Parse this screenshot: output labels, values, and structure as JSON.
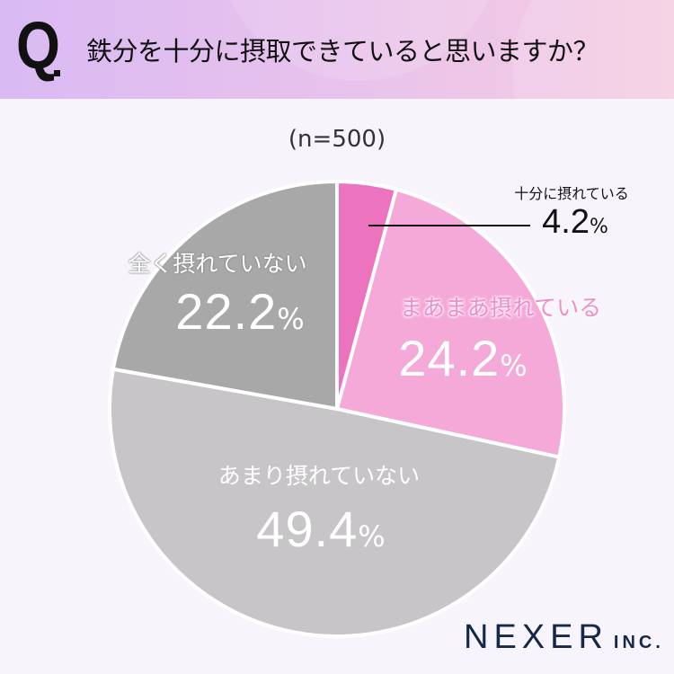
{
  "header": {
    "q_mark": "Q",
    "title": "鉄分を十分に摂取できていると思いますか？"
  },
  "sample": "(n=500)",
  "chart_data": {
    "type": "pie",
    "start": "top",
    "direction": "clockwise",
    "slices": [
      {
        "label": "十分に摂れている",
        "value": 4.2,
        "display": "4.2",
        "color": "#ec74bf"
      },
      {
        "label": "まあまあ摂れている",
        "value": 24.2,
        "display": "24.2",
        "color": "#f5a9d8"
      },
      {
        "label": "あまり摂れていない",
        "value": 49.4,
        "display": "49.4",
        "color": "#c7c5c7"
      },
      {
        "label": "全く摂れていない",
        "value": 22.2,
        "display": "22.2",
        "color": "#a9a8a9"
      }
    ],
    "unit": "%"
  },
  "logo": {
    "name": "NEXER",
    "suffix": "INC."
  }
}
